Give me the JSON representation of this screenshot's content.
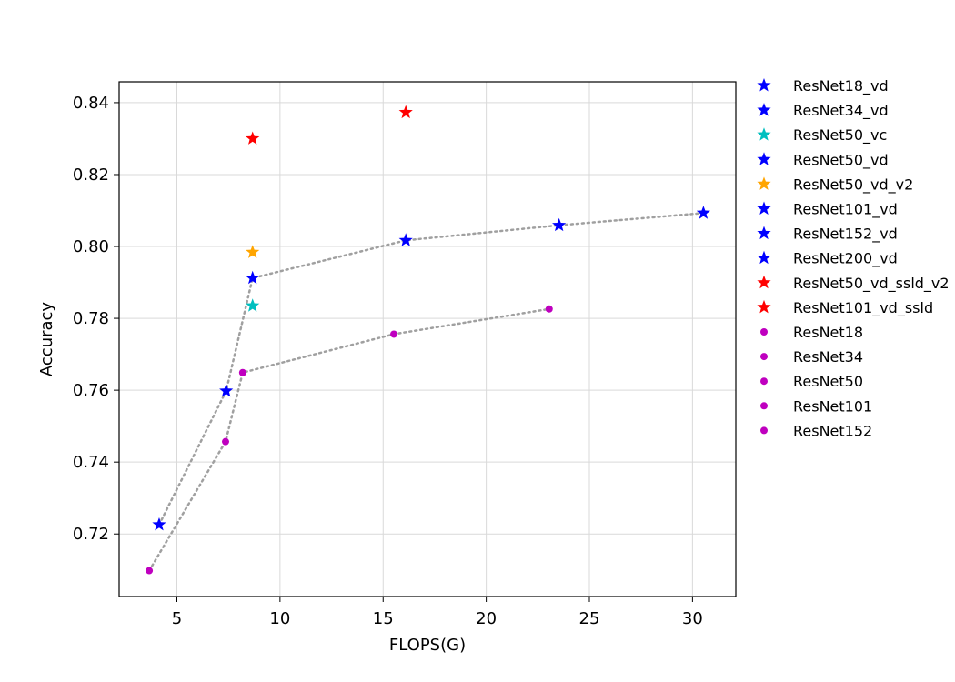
{
  "chart_data": {
    "type": "scatter",
    "xlabel": "FLOPS(G)",
    "ylabel": "Accuracy",
    "xlim": [
      2.2,
      32.1
    ],
    "ylim": [
      0.7026,
      0.8458
    ],
    "xticks": [
      5,
      10,
      15,
      20,
      25,
      30
    ],
    "yticks": [
      0.72,
      0.74,
      0.76,
      0.78,
      0.8,
      0.82,
      0.84
    ],
    "grid": true,
    "legend_position": "outside-right",
    "series": [
      {
        "name": "ResNet18_vd",
        "marker": "star",
        "color": "#0000ff",
        "points": [
          [
            4.14,
            0.7226
          ]
        ]
      },
      {
        "name": "ResNet34_vd",
        "marker": "star",
        "color": "#0000ff",
        "points": [
          [
            7.39,
            0.7598
          ]
        ]
      },
      {
        "name": "ResNet50_vc",
        "marker": "star",
        "color": "#00bfbf",
        "points": [
          [
            8.67,
            0.7835
          ]
        ]
      },
      {
        "name": "ResNet50_vd",
        "marker": "star",
        "color": "#0000ff",
        "points": [
          [
            8.67,
            0.7912
          ]
        ]
      },
      {
        "name": "ResNet50_vd_v2",
        "marker": "star",
        "color": "#ffa500",
        "points": [
          [
            8.67,
            0.7984
          ]
        ]
      },
      {
        "name": "ResNet101_vd",
        "marker": "star",
        "color": "#0000ff",
        "points": [
          [
            16.1,
            0.8017
          ]
        ]
      },
      {
        "name": "ResNet152_vd",
        "marker": "star",
        "color": "#0000ff",
        "points": [
          [
            23.53,
            0.8059
          ]
        ]
      },
      {
        "name": "ResNet200_vd",
        "marker": "star",
        "color": "#0000ff",
        "points": [
          [
            30.53,
            0.8093
          ]
        ]
      },
      {
        "name": "ResNet50_vd_ssld_v2",
        "legend_visible_text": "ResNet50_vd_ssld_v2",
        "marker": "star",
        "color": "#ff0000",
        "points": [
          [
            8.67,
            0.83
          ]
        ]
      },
      {
        "name": "ResNet101_vd_ssld",
        "marker": "star",
        "color": "#ff0000",
        "points": [
          [
            16.1,
            0.8373
          ]
        ]
      },
      {
        "name": "ResNet18",
        "marker": "dot",
        "color": "#bf00bf",
        "points": [
          [
            3.66,
            0.7098
          ]
        ]
      },
      {
        "name": "ResNet34",
        "marker": "dot",
        "color": "#bf00bf",
        "points": [
          [
            7.36,
            0.7457
          ]
        ]
      },
      {
        "name": "ResNet50",
        "marker": "dot",
        "color": "#bf00bf",
        "points": [
          [
            8.19,
            0.7649
          ]
        ]
      },
      {
        "name": "ResNet101",
        "marker": "dot",
        "color": "#bf00bf",
        "points": [
          [
            15.52,
            0.7756
          ]
        ]
      },
      {
        "name": "ResNet152",
        "marker": "dot",
        "color": "#bf00bf",
        "points": [
          [
            23.05,
            0.7826
          ]
        ]
      }
    ],
    "trend_lines": [
      {
        "style": "dotted",
        "color": "#a0a0a0",
        "points": [
          [
            4.14,
            0.7226
          ],
          [
            7.39,
            0.7598
          ],
          [
            8.67,
            0.7912
          ],
          [
            16.1,
            0.8017
          ],
          [
            23.53,
            0.8059
          ],
          [
            30.53,
            0.8093
          ]
        ]
      },
      {
        "style": "dotted",
        "color": "#a0a0a0",
        "points": [
          [
            3.66,
            0.7098
          ],
          [
            7.36,
            0.7457
          ],
          [
            8.19,
            0.7649
          ],
          [
            15.52,
            0.7756
          ],
          [
            23.05,
            0.7826
          ]
        ]
      }
    ]
  }
}
